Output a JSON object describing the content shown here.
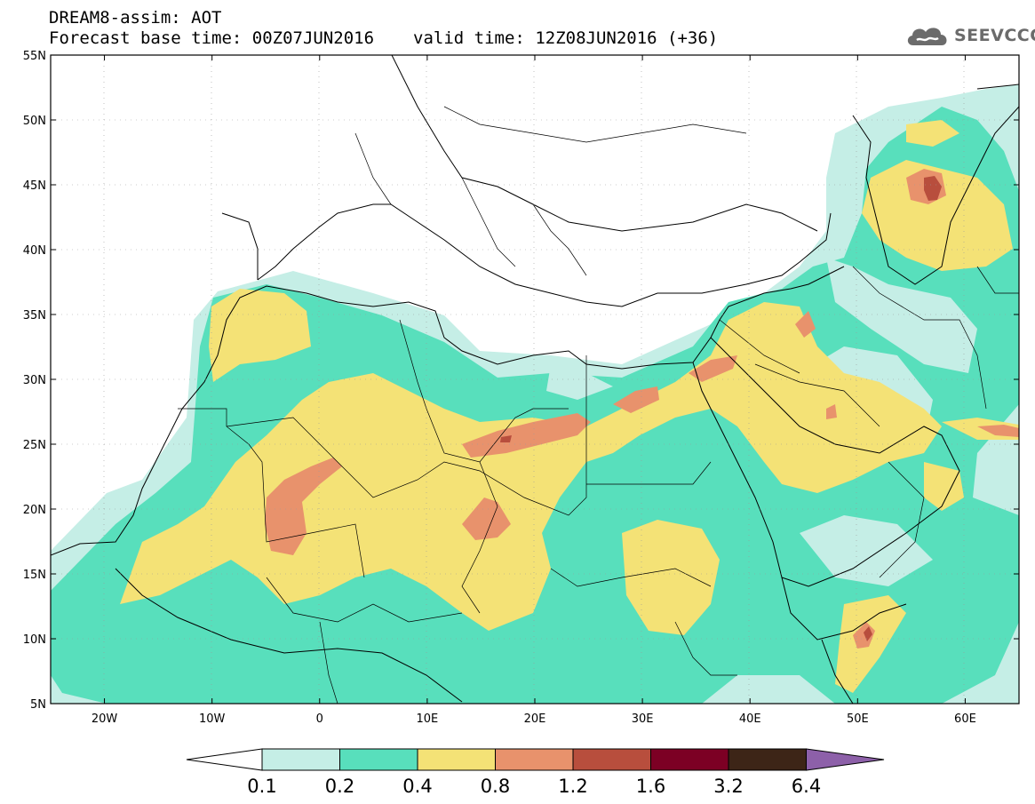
{
  "header": {
    "line1": "DREAM8-assim: AOT",
    "line2_left": "Forecast base time: 00Z07JUN2016",
    "line2_right": "valid time: 12Z08JUN2016 (+36)",
    "logo_text": "SEEVCCC",
    "logo_icon": "cloud-icon"
  },
  "map": {
    "projection": "plate-carree",
    "lon_range": [
      -25,
      65
    ],
    "lat_range": [
      5,
      55
    ],
    "lat_ticks": [
      "55N",
      "50N",
      "45N",
      "40N",
      "35N",
      "30N",
      "25N",
      "20N",
      "15N",
      "10N",
      "5N"
    ],
    "lon_ticks": [
      "20W",
      "10W",
      "0",
      "10E",
      "20E",
      "30E",
      "40E",
      "50E",
      "60E"
    ],
    "dust_regions": [
      {
        "level": "0.4–0.8",
        "area": "Sahara / Sahel main plume"
      },
      {
        "level": "0.8–1.2",
        "area": "Mali / Mauritania core"
      },
      {
        "level": "0.8–1.2",
        "area": "Libya / Egypt belt near 25N"
      },
      {
        "level": "0.8–1.2",
        "area": "Chad / Niger core near 20N"
      },
      {
        "level": "1.2–1.6",
        "area": "Caspian / Aral region near 45N 57E"
      },
      {
        "level": "1.2–1.6",
        "area": "Horn of Africa near 11N 51E"
      }
    ]
  },
  "colorbar": {
    "labels": [
      "0.1",
      "0.2",
      "0.4",
      "0.8",
      "1.2",
      "1.6",
      "3.2",
      "6.4"
    ],
    "colors": [
      "#c5eee6",
      "#58dfbc",
      "#f4e276",
      "#e8926c",
      "#b84e3d",
      "#7c0024",
      "#3d2517",
      "#8d60a9"
    ],
    "under_color": "#ffffff"
  }
}
